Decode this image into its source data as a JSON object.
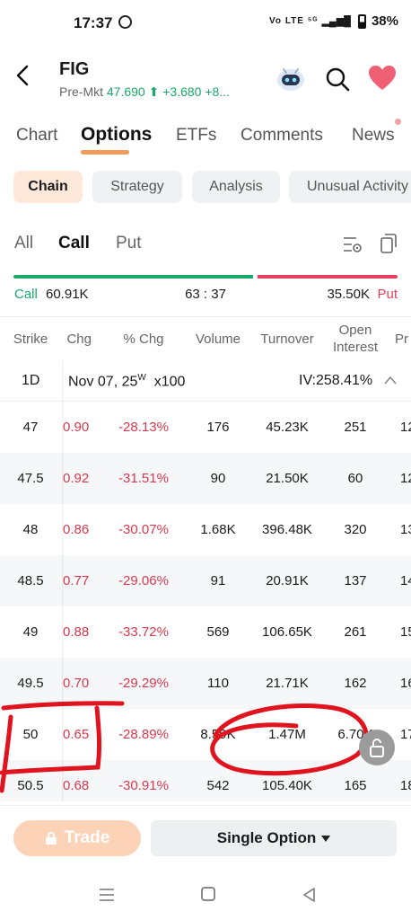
{
  "status": {
    "time": "17:37",
    "network": "Vo LTE ⁵ᴳ",
    "battery": "38%"
  },
  "header": {
    "ticker": "FIG",
    "premkt_label": "Pre-Mkt",
    "premkt_price": "47.690",
    "premkt_change": "+3.680 +8...",
    "up_arrow": "⬆"
  },
  "tabs": [
    "Chart",
    "Options",
    "ETFs",
    "Comments",
    "News"
  ],
  "chips": [
    "Chain",
    "Strategy",
    "Analysis",
    "Unusual Activity"
  ],
  "filters": [
    "All",
    "Call",
    "Put"
  ],
  "ratio": {
    "call_label": "Call",
    "call_value": "60.91K",
    "ratio": "63 : 37",
    "put_value": "35.50K",
    "put_label": "Put",
    "call_share": 0.63
  },
  "columns": {
    "strike": "Strike",
    "chg": "Chg",
    "pct_chg": "% Chg",
    "volume": "Volume",
    "turnover": "Turnover",
    "open_interest": "Open Interest",
    "pr": "Pr"
  },
  "expiry": {
    "range": "1D",
    "date": "Nov 07, 25",
    "weekly": "W",
    "multiplier": "x100",
    "iv": "IV:258.41%"
  },
  "rows": [
    {
      "strike": "47",
      "chg": "0.90",
      "pct": "-28.13%",
      "volume": "176",
      "turnover": "45.23K",
      "oi": "251",
      "pr": "12"
    },
    {
      "strike": "47.5",
      "chg": "0.92",
      "pct": "-31.51%",
      "volume": "90",
      "turnover": "21.50K",
      "oi": "60",
      "pr": "12"
    },
    {
      "strike": "48",
      "chg": "0.86",
      "pct": "-30.07%",
      "volume": "1.68K",
      "turnover": "396.48K",
      "oi": "320",
      "pr": "13"
    },
    {
      "strike": "48.5",
      "chg": "0.77",
      "pct": "-29.06%",
      "volume": "91",
      "turnover": "20.91K",
      "oi": "137",
      "pr": "14"
    },
    {
      "strike": "49",
      "chg": "0.88",
      "pct": "-33.72%",
      "volume": "569",
      "turnover": "106.65K",
      "oi": "261",
      "pr": "15"
    },
    {
      "strike": "49.5",
      "chg": "0.70",
      "pct": "-29.29%",
      "volume": "110",
      "turnover": "21.71K",
      "oi": "162",
      "pr": "16"
    },
    {
      "strike": "50",
      "chg": "0.65",
      "pct": "-28.89%",
      "volume": "8.59K",
      "turnover": "1.47M",
      "oi": "6.70K",
      "pr": "17"
    },
    {
      "strike": "50.5",
      "chg": "0.68",
      "pct": "-30.91%",
      "volume": "542",
      "turnover": "105.40K",
      "oi": "165",
      "pr": "18"
    }
  ],
  "bottom": {
    "trade_label": "Trade",
    "single_option_label": "Single Option"
  },
  "colors": {
    "accent": "#f29a5a",
    "up": "#1aa96b",
    "down": "#e5405e",
    "annotation": "#e0141e"
  }
}
